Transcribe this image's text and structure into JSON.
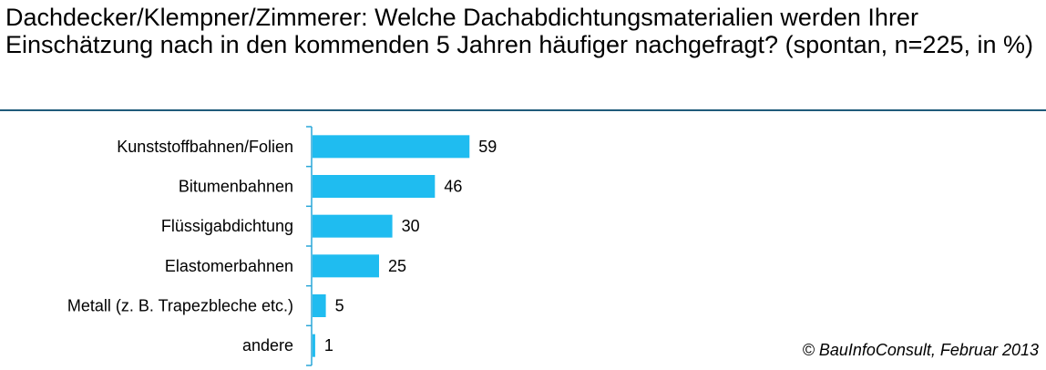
{
  "title": "Dachdecker/Klempner/Zimmerer: Welche Dachabdichtungsmaterialien werden Ihrer Einschätzung nach in den kommenden 5 Jahren häufiger nachgefragt? (spontan, n=225, in %)",
  "copyright": "© BauInfoConsult, Februar 2013",
  "colors": {
    "bar": "#1fbcf0",
    "axis": "#2aa7d8",
    "rule": "#1f5b7a"
  },
  "chart_data": {
    "type": "bar",
    "orientation": "horizontal",
    "categories": [
      "Kunststoffbahnen/Folien",
      "Bitumenbahnen",
      "Flüssigabdichtung",
      "Elastomerbahnen",
      "Metall (z. B. Trapezbleche etc.)",
      "andere"
    ],
    "values": [
      59,
      46,
      30,
      25,
      5,
      1
    ],
    "title": "Dachdecker/Klempner/Zimmerer: Welche Dachabdichtungsmaterialien werden Ihrer Einschätzung nach in den kommenden 5 Jahren häufiger nachgefragt? (spontan, n=225, in %)",
    "xlim": [
      0,
      100
    ],
    "grid": false,
    "data_labels": true
  }
}
